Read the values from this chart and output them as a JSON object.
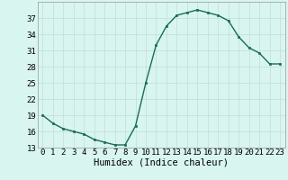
{
  "x": [
    0,
    1,
    2,
    3,
    4,
    5,
    6,
    7,
    8,
    9,
    10,
    11,
    12,
    13,
    14,
    15,
    16,
    17,
    18,
    19,
    20,
    21,
    22,
    23
  ],
  "y": [
    19,
    17.5,
    16.5,
    16,
    15.5,
    14.5,
    14,
    13.5,
    13.5,
    17,
    25,
    32,
    35.5,
    37.5,
    38,
    38.5,
    38,
    37.5,
    36.5,
    33.5,
    31.5,
    30.5,
    28.5,
    28.5
  ],
  "line_color": "#1a6b5a",
  "marker": "s",
  "marker_size": 2,
  "bg_color": "#d8f5f0",
  "grid_color": "#c0ddd8",
  "xlabel": "Humidex (Indice chaleur)",
  "xlim": [
    -0.5,
    23.5
  ],
  "ylim": [
    13,
    40
  ],
  "yticks": [
    13,
    16,
    19,
    22,
    25,
    28,
    31,
    34,
    37
  ],
  "xticks": [
    0,
    1,
    2,
    3,
    4,
    5,
    6,
    7,
    8,
    9,
    10,
    11,
    12,
    13,
    14,
    15,
    16,
    17,
    18,
    19,
    20,
    21,
    22,
    23
  ],
  "tick_fontsize": 6.5,
  "xlabel_fontsize": 7.5,
  "line_width": 1.0
}
